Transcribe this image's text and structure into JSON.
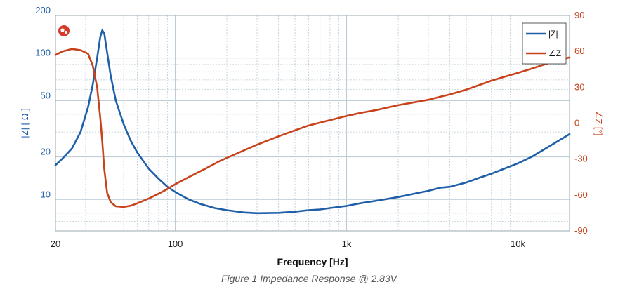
{
  "caption": "Figure 1 Impedance Response @ 2.83V",
  "colors": {
    "impedance": "#1f5fa8",
    "phase": "#c8431c",
    "grid": "#b9cbd6",
    "frame": "#9aa8b2"
  },
  "chart_data": {
    "type": "line",
    "title": "",
    "xlabel": "Frequency [Hz]",
    "xscale": "log",
    "xlim": [
      20,
      20000
    ],
    "xticks": [
      {
        "value": 20,
        "label": "20"
      },
      {
        "value": 100,
        "label": "100"
      },
      {
        "value": 1000,
        "label": "1k"
      },
      {
        "value": 10000,
        "label": "10k"
      }
    ],
    "y_left": {
      "label": "|Z| [ Ω ]",
      "scale": "log",
      "lim": [
        6,
        200
      ],
      "ticks": [
        {
          "value": 200,
          "label": "200"
        },
        {
          "value": 100,
          "label": "100"
        },
        {
          "value": 50,
          "label": "50"
        },
        {
          "value": 20,
          "label": "20"
        },
        {
          "value": 10,
          "label": "10"
        }
      ]
    },
    "y_right": {
      "label": "∠Z [°]",
      "scale": "linear",
      "lim": [
        -90,
        90
      ],
      "ticks": [
        {
          "value": 90,
          "label": "90"
        },
        {
          "value": 60,
          "label": "60"
        },
        {
          "value": 30,
          "label": "30"
        },
        {
          "value": 0,
          "label": "0"
        },
        {
          "value": -30,
          "label": "-30"
        },
        {
          "value": -60,
          "label": "-60"
        },
        {
          "value": -90,
          "label": "-90"
        }
      ]
    },
    "grid": true,
    "legend": "top-right",
    "series": [
      {
        "name": "|Z|",
        "axis": "left",
        "points": [
          [
            20,
            17.5
          ],
          [
            22,
            19.5
          ],
          [
            25,
            23
          ],
          [
            28,
            30
          ],
          [
            31,
            45
          ],
          [
            33,
            65
          ],
          [
            35,
            100
          ],
          [
            36.5,
            140
          ],
          [
            37.5,
            157
          ],
          [
            38.5,
            150
          ],
          [
            40,
            110
          ],
          [
            42,
            75
          ],
          [
            45,
            50
          ],
          [
            50,
            34
          ],
          [
            55,
            26
          ],
          [
            60,
            21.5
          ],
          [
            70,
            16.5
          ],
          [
            80,
            14
          ],
          [
            90,
            12.3
          ],
          [
            100,
            11.3
          ],
          [
            120,
            10
          ],
          [
            140,
            9.3
          ],
          [
            170,
            8.7
          ],
          [
            200,
            8.4
          ],
          [
            250,
            8.1
          ],
          [
            300,
            8
          ],
          [
            400,
            8.05
          ],
          [
            500,
            8.2
          ],
          [
            600,
            8.4
          ],
          [
            700,
            8.5
          ],
          [
            800,
            8.7
          ],
          [
            1000,
            9
          ],
          [
            1200,
            9.4
          ],
          [
            1500,
            9.8
          ],
          [
            2000,
            10.4
          ],
          [
            2500,
            11
          ],
          [
            3000,
            11.5
          ],
          [
            3500,
            12.1
          ],
          [
            4000,
            12.3
          ],
          [
            5000,
            13.2
          ],
          [
            6000,
            14.3
          ],
          [
            7000,
            15.2
          ],
          [
            8000,
            16.2
          ],
          [
            10000,
            18
          ],
          [
            12000,
            20
          ],
          [
            15000,
            23.5
          ],
          [
            20000,
            29
          ]
        ]
      },
      {
        "name": "∠Z",
        "axis": "right",
        "points": [
          [
            20,
            57
          ],
          [
            22,
            60
          ],
          [
            25,
            62
          ],
          [
            28,
            61
          ],
          [
            31,
            58
          ],
          [
            33,
            48
          ],
          [
            35,
            30
          ],
          [
            36.5,
            5
          ],
          [
            37.5,
            -15
          ],
          [
            38.5,
            -38
          ],
          [
            40,
            -58
          ],
          [
            42,
            -66
          ],
          [
            45,
            -69.5
          ],
          [
            50,
            -70
          ],
          [
            55,
            -69
          ],
          [
            60,
            -67
          ],
          [
            70,
            -63
          ],
          [
            80,
            -59
          ],
          [
            90,
            -55
          ],
          [
            100,
            -51
          ],
          [
            120,
            -45
          ],
          [
            150,
            -38
          ],
          [
            180,
            -32
          ],
          [
            200,
            -29
          ],
          [
            250,
            -23
          ],
          [
            300,
            -18
          ],
          [
            400,
            -11
          ],
          [
            500,
            -6
          ],
          [
            600,
            -2
          ],
          [
            800,
            2.5
          ],
          [
            1000,
            6
          ],
          [
            1200,
            8.5
          ],
          [
            1500,
            11
          ],
          [
            2000,
            15
          ],
          [
            2500,
            17.5
          ],
          [
            3000,
            19.5
          ],
          [
            3500,
            22
          ],
          [
            4000,
            24
          ],
          [
            5000,
            28
          ],
          [
            6000,
            32
          ],
          [
            7000,
            35.5
          ],
          [
            8000,
            38
          ],
          [
            10000,
            42
          ],
          [
            12000,
            45.5
          ],
          [
            15000,
            50
          ],
          [
            20000,
            55
          ]
        ]
      }
    ]
  }
}
